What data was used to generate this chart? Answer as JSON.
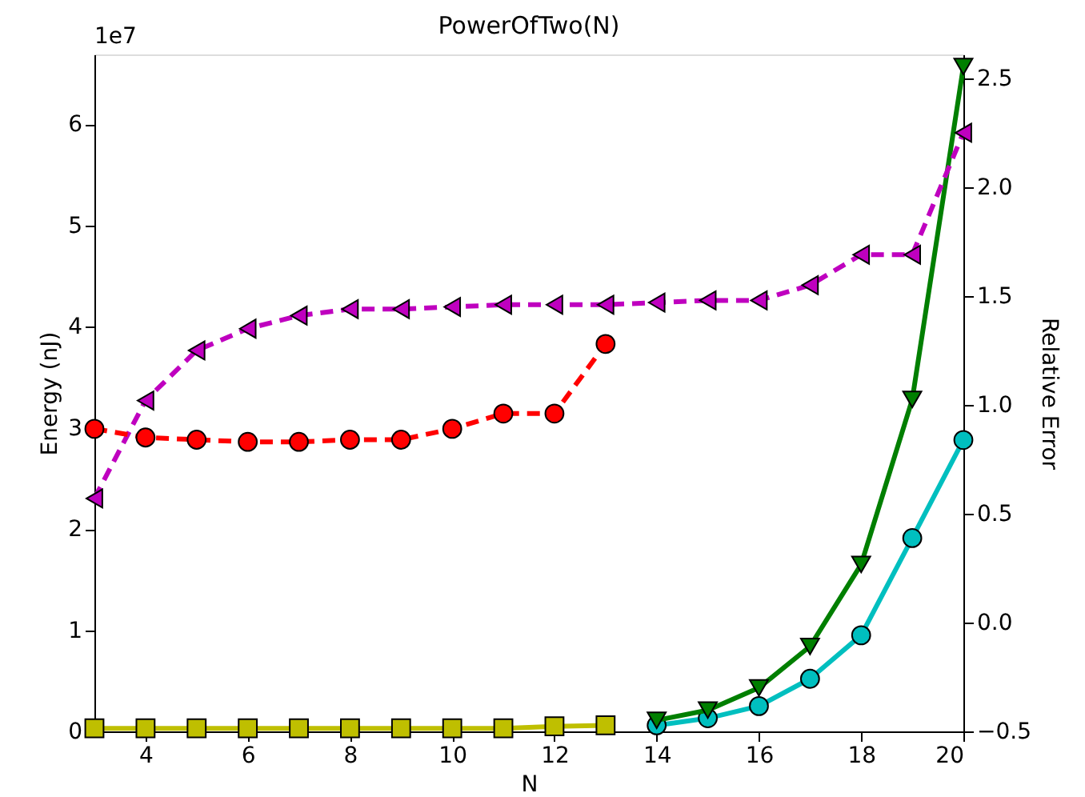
{
  "chart_data": {
    "type": "line",
    "title": "PowerOfTwo(N)",
    "xlabel": "N",
    "ylabel": "Energy (nJ)",
    "y2label": "Relative Error",
    "annotations": [
      "1e7"
    ],
    "xlim": [
      3,
      20
    ],
    "xticks": [
      4,
      6,
      8,
      10,
      12,
      14,
      16,
      18,
      20
    ],
    "ylim": [
      0,
      6.69
    ],
    "yticks": [
      0,
      1,
      2,
      3,
      4,
      5,
      6
    ],
    "y2lim": [
      -0.5,
      2.61
    ],
    "y2ticks": [
      {
        "value": -0.5,
        "label": "−0.5"
      },
      {
        "value": 0,
        "label": "0.0"
      },
      {
        "value": 0.5,
        "label": "0.5"
      },
      {
        "value": 1,
        "label": "1.0"
      },
      {
        "value": 1.5,
        "label": "1.5"
      },
      {
        "value": 2,
        "label": "2.0"
      },
      {
        "value": 2.5,
        "label": "2.5"
      }
    ],
    "grid": false,
    "series": [
      {
        "color": "#bfbf00",
        "marker": "square",
        "line_style": "solid",
        "x": [
          3,
          4,
          5,
          6,
          7,
          8,
          9,
          10,
          11,
          12,
          13
        ],
        "values": [
          0.03,
          0.03,
          0.03,
          0.03,
          0.03,
          0.03,
          0.03,
          0.03,
          0.03,
          0.05,
          0.06
        ]
      },
      {
        "color": "#00bfbf",
        "marker": "circle",
        "line_style": "solid",
        "x": [
          14,
          15,
          16,
          17,
          18,
          19,
          20
        ],
        "values": [
          0.06,
          0.13,
          0.25,
          0.52,
          0.95,
          1.91,
          2.88
        ]
      },
      {
        "color": "#007f00",
        "marker": "triangle-down",
        "line_style": "solid",
        "x": [
          14,
          15,
          16,
          17,
          18,
          19,
          20
        ],
        "values": [
          0.11,
          0.21,
          0.43,
          0.84,
          1.65,
          3.28,
          6.57
        ]
      },
      {
        "color": "#bf00bf",
        "marker": "triangle-left",
        "line_style": "dashed",
        "axis": "y2",
        "x": [
          3,
          4,
          5,
          6,
          7,
          8,
          9,
          10,
          11,
          12,
          13,
          14,
          15,
          16,
          17,
          18,
          19,
          20
        ],
        "values": [
          0.57,
          1.02,
          1.25,
          1.35,
          1.41,
          1.44,
          1.44,
          1.45,
          1.46,
          1.46,
          1.46,
          1.47,
          1.48,
          1.48,
          1.55,
          1.69,
          1.69,
          2.25
        ]
      },
      {
        "color": "#ff0000",
        "marker": "circle",
        "line_style": "dashed",
        "axis": "y2",
        "x": [
          3,
          4,
          5,
          6,
          7,
          8,
          9,
          10,
          11,
          12,
          13
        ],
        "values": [
          0.89,
          0.85,
          0.84,
          0.83,
          0.83,
          0.84,
          0.84,
          0.89,
          0.96,
          0.96,
          1.28
        ]
      }
    ]
  }
}
